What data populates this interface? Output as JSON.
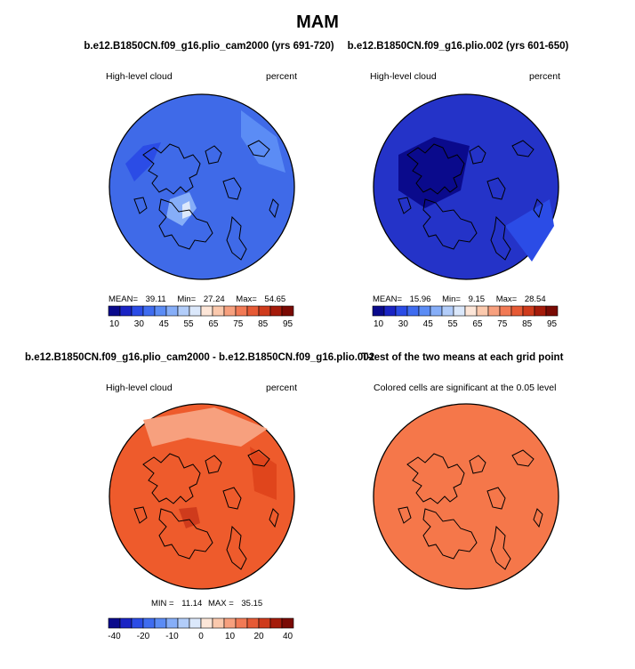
{
  "figure": {
    "title": "MAM"
  },
  "colors": {
    "cool_scale": [
      "#0a0a8c",
      "#1a24c4",
      "#2b4ce6",
      "#3f6cf0",
      "#5b8cf5",
      "#86aef8",
      "#b2cdfa",
      "#dbe8fb",
      "#fde6d8",
      "#fbc9ad",
      "#f7a07e",
      "#f27a55",
      "#e65a35",
      "#cf3b1c",
      "#a51b0a",
      "#7a0a04"
    ],
    "panel1_fill": "#3f6ae8",
    "panel2_fill": "#2433c8",
    "panel3_fill": "#ee5b2c",
    "panel4_fill": "#f5774a"
  },
  "chart_data": [
    {
      "type": "heatmap",
      "panel": "top-left",
      "title": "b.e12.B1850CN.f09_g16.plio_cam2000 (yrs 691-720)",
      "left_label": "High-level cloud",
      "right_label": "percent",
      "stats": {
        "mean_label": "MEAN=",
        "mean": "39.11",
        "min_label": "Min=",
        "min": "27.24",
        "max_label": "Max=",
        "max": "54.65"
      },
      "colorbar_ticks": [
        "10",
        "30",
        "45",
        "55",
        "65",
        "75",
        "85",
        "95"
      ]
    },
    {
      "type": "heatmap",
      "panel": "top-right",
      "title": "b.e12.B1850CN.f09_g16.plio.002 (yrs 601-650)",
      "left_label": "High-level cloud",
      "right_label": "percent",
      "stats": {
        "mean_label": "MEAN=",
        "mean": "15.96",
        "min_label": "Min=",
        "min": "9.15",
        "max_label": "Max=",
        "max": "28.54"
      },
      "colorbar_ticks": [
        "10",
        "30",
        "45",
        "55",
        "65",
        "75",
        "85",
        "95"
      ]
    },
    {
      "type": "heatmap",
      "panel": "bottom-left",
      "title": "b.e12.B1850CN.f09_g16.plio_cam2000 - b.e12.B1850CN.f09_g16.plio.002",
      "left_label": "High-level cloud",
      "right_label": "percent",
      "stats": {
        "min_label": "MIN =",
        "min": "11.14",
        "max_label": "MAX =",
        "max": "35.15"
      },
      "colorbar_ticks": [
        "-40",
        "-20",
        "-10",
        "0",
        "10",
        "20",
        "40"
      ]
    },
    {
      "type": "heatmap",
      "panel": "bottom-right",
      "title": "T-test of the two means at each grid point",
      "left_label": "Colored cells are significant at the 0.05 level"
    }
  ]
}
